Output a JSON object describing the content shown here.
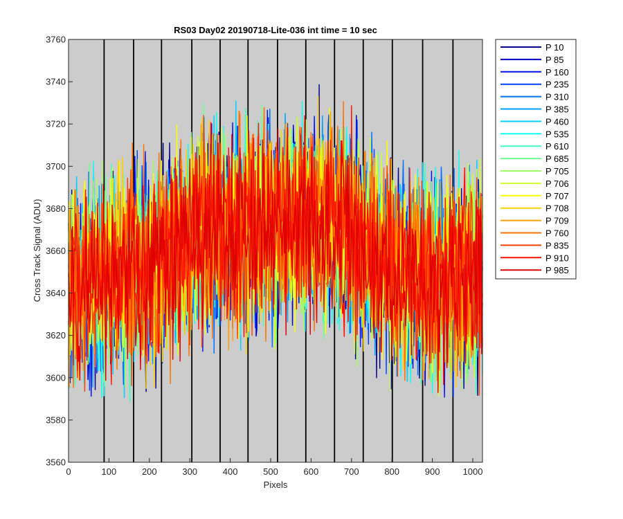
{
  "chart_data": {
    "type": "line",
    "title": "RS03 Day02 20190718-Lite-036 int time = 10 sec",
    "xlabel": "Pixels",
    "ylabel": "Cross Track Signal (ADU)",
    "xlim": [
      0,
      1024
    ],
    "ylim": [
      3560,
      3760
    ],
    "xticks": [
      0,
      100,
      200,
      300,
      400,
      500,
      600,
      700,
      800,
      900,
      1000
    ],
    "yticks": [
      3560,
      3580,
      3600,
      3620,
      3640,
      3660,
      3680,
      3700,
      3720,
      3740,
      3760
    ],
    "grid": false,
    "background": "#cccccc",
    "vertical_lines_at": [
      88,
      161,
      230,
      305,
      375,
      444,
      517,
      587,
      658,
      729,
      801,
      876,
      951
    ],
    "legend_position": "outside-top-right",
    "profile": {
      "x": [
        0,
        100,
        200,
        300,
        400,
        500,
        600,
        700,
        800,
        900,
        1024
      ],
      "mean": [
        3641,
        3648,
        3652,
        3667,
        3670,
        3672,
        3676,
        3669,
        3652,
        3645,
        3650
      ],
      "noise_amplitude": 22
    },
    "series": [
      {
        "name": "P 10",
        "color": "#00008f"
      },
      {
        "name": "P 85",
        "color": "#0000bf"
      },
      {
        "name": "P 160",
        "color": "#0010ef"
      },
      {
        "name": "P 235",
        "color": "#0040ff"
      },
      {
        "name": "P 310",
        "color": "#0070ff"
      },
      {
        "name": "P 385",
        "color": "#00a0ff"
      },
      {
        "name": "P 460",
        "color": "#00d0ff"
      },
      {
        "name": "P 535",
        "color": "#10ffef"
      },
      {
        "name": "P 610",
        "color": "#40ffbf"
      },
      {
        "name": "P 685",
        "color": "#70ff8f"
      },
      {
        "name": "P 705",
        "color": "#a0ff60"
      },
      {
        "name": "P 706",
        "color": "#d0ff30"
      },
      {
        "name": "P 707",
        "color": "#ffff00"
      },
      {
        "name": "P 708",
        "color": "#ffd000"
      },
      {
        "name": "P 709",
        "color": "#ffa000"
      },
      {
        "name": "P 760",
        "color": "#ff7000"
      },
      {
        "name": "P 835",
        "color": "#ff4000"
      },
      {
        "name": "P 910",
        "color": "#ff1000"
      },
      {
        "name": "P 985",
        "color": "#df0000"
      }
    ]
  }
}
